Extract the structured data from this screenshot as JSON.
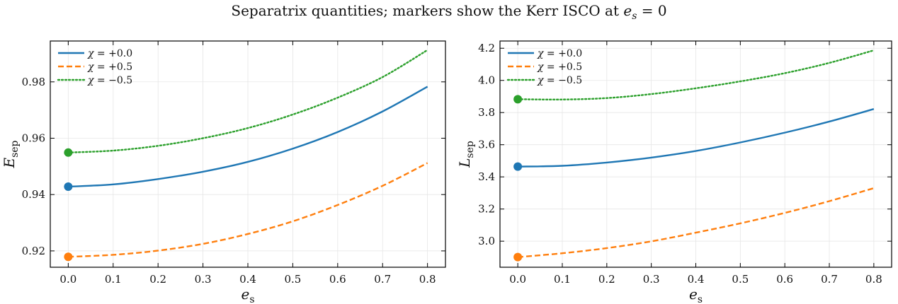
{
  "figure": {
    "suptitle": "Separatrix quantities; markers show the Kerr ISCO at",
    "suptitle_math_var": "e",
    "suptitle_math_sub": "s",
    "suptitle_math_tail": " = 0"
  },
  "colors": {
    "blue": "#1f77b4",
    "orange": "#ff7f0e",
    "green": "#2ca02c",
    "grid": "#e6e6e6",
    "axis": "#000000"
  },
  "legend": {
    "symbol": "χ",
    "entries": [
      {
        "text": " = +0.0",
        "color": "#1f77b4",
        "dash": "solid"
      },
      {
        "text": " = +0.5",
        "color": "#ff7f0e",
        "dash": "dashed"
      },
      {
        "text": " = −0.5",
        "color": "#2ca02c",
        "dash": "dotted"
      }
    ]
  },
  "chart_data": [
    {
      "type": "line",
      "panel": "left",
      "xlabel_main": "e",
      "xlabel_sub": "s",
      "ylabel_main": "E",
      "ylabel_sub": "sep",
      "xlim": [
        -0.04,
        0.84
      ],
      "ylim": [
        0.9142,
        0.9945
      ],
      "xticks": [
        0.0,
        0.1,
        0.2,
        0.3,
        0.4,
        0.5,
        0.6,
        0.7,
        0.8
      ],
      "xtick_labels": [
        "0.0",
        "0.1",
        "0.2",
        "0.3",
        "0.4",
        "0.5",
        "0.6",
        "0.7",
        "0.8"
      ],
      "yticks": [
        0.92,
        0.94,
        0.96,
        0.98
      ],
      "ytick_labels": [
        "0.92",
        "0.94",
        "0.96",
        "0.98"
      ],
      "grid": true,
      "legend_position": "top-left",
      "series": [
        {
          "name": "χ = +0.0",
          "color": "#1f77b4",
          "dash": "solid",
          "x": [
            0.0,
            0.1,
            0.2,
            0.3,
            0.4,
            0.5,
            0.6,
            0.7,
            0.8
          ],
          "y": [
            0.9428,
            0.9436,
            0.9455,
            0.9481,
            0.9516,
            0.9563,
            0.9622,
            0.9695,
            0.9783
          ],
          "marker": {
            "x": 0.0,
            "y": 0.9428
          }
        },
        {
          "name": "χ = +0.5",
          "color": "#ff7f0e",
          "dash": "dashed",
          "x": [
            0.0,
            0.1,
            0.2,
            0.3,
            0.4,
            0.5,
            0.6,
            0.7,
            0.8
          ],
          "y": [
            0.9179,
            0.9186,
            0.9201,
            0.9225,
            0.926,
            0.9305,
            0.9363,
            0.9431,
            0.9512
          ],
          "marker": {
            "x": 0.0,
            "y": 0.9179
          }
        },
        {
          "name": "χ = −0.5",
          "color": "#2ca02c",
          "dash": "dotted",
          "x": [
            0.0,
            0.1,
            0.2,
            0.3,
            0.4,
            0.5,
            0.6,
            0.7,
            0.8
          ],
          "y": [
            0.9549,
            0.9556,
            0.9573,
            0.96,
            0.9636,
            0.9684,
            0.9744,
            0.9817,
            0.9913
          ],
          "marker": {
            "x": 0.0,
            "y": 0.9549
          }
        }
      ]
    },
    {
      "type": "line",
      "panel": "right",
      "xlabel_main": "e",
      "xlabel_sub": "s",
      "ylabel_main": "L",
      "ylabel_sub": "sep",
      "xlim": [
        -0.04,
        0.84
      ],
      "ylim": [
        2.838,
        4.245
      ],
      "xticks": [
        0.0,
        0.1,
        0.2,
        0.3,
        0.4,
        0.5,
        0.6,
        0.7,
        0.8
      ],
      "xtick_labels": [
        "0.0",
        "0.1",
        "0.2",
        "0.3",
        "0.4",
        "0.5",
        "0.6",
        "0.7",
        "0.8"
      ],
      "yticks": [
        3.0,
        3.2,
        3.4,
        3.6,
        3.8,
        4.0,
        4.2
      ],
      "ytick_labels": [
        "3.0",
        "3.2",
        "3.4",
        "3.6",
        "3.8",
        "4.0",
        "4.2"
      ],
      "grid": true,
      "legend_position": "top-left",
      "series": [
        {
          "name": "χ = +0.0",
          "color": "#1f77b4",
          "dash": "solid",
          "x": [
            0.0,
            0.1,
            0.2,
            0.3,
            0.4,
            0.5,
            0.6,
            0.7,
            0.8
          ],
          "y": [
            3.464,
            3.469,
            3.489,
            3.52,
            3.561,
            3.614,
            3.675,
            3.744,
            3.822
          ],
          "marker": {
            "x": 0.0,
            "y": 3.464
          }
        },
        {
          "name": "χ = +0.5",
          "color": "#ff7f0e",
          "dash": "dashed",
          "x": [
            0.0,
            0.1,
            0.2,
            0.3,
            0.4,
            0.5,
            0.6,
            0.7,
            0.8
          ],
          "y": [
            2.901,
            2.925,
            2.957,
            2.999,
            3.053,
            3.111,
            3.176,
            3.249,
            3.33
          ],
          "marker": {
            "x": 0.0,
            "y": 2.901
          }
        },
        {
          "name": "χ = −0.5",
          "color": "#2ca02c",
          "dash": "dotted",
          "x": [
            0.0,
            0.1,
            0.2,
            0.3,
            0.4,
            0.5,
            0.6,
            0.7,
            0.8
          ],
          "y": [
            3.883,
            3.881,
            3.89,
            3.915,
            3.951,
            3.994,
            4.045,
            4.109,
            4.187
          ],
          "marker": {
            "x": 0.0,
            "y": 3.883
          }
        }
      ]
    }
  ]
}
